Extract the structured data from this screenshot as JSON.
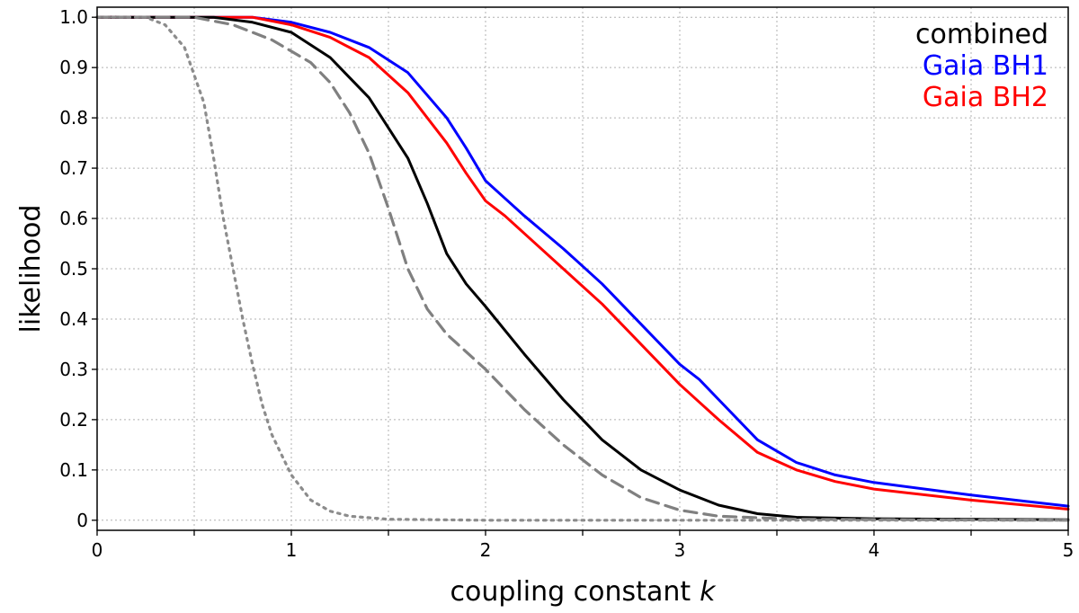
{
  "chart_data": {
    "type": "line",
    "xlabel": "coupling constant",
    "xlabel_symbol": "k",
    "ylabel": "likelihood",
    "xlim": [
      0,
      5
    ],
    "ylim": [
      -0.02,
      1.02
    ],
    "grid": true,
    "legend_position": "top-right",
    "x_ticks": [
      0,
      0.5,
      1,
      1.5,
      2,
      2.5,
      3,
      3.5,
      4,
      4.5,
      5
    ],
    "x_tick_labels": [
      "0",
      "",
      "1",
      "",
      "2",
      "",
      "3",
      "",
      "4",
      "",
      "5"
    ],
    "y_ticks": [
      0,
      0.1,
      0.2,
      0.3,
      0.4,
      0.5,
      0.6,
      0.7,
      0.8,
      0.9,
      1.0
    ],
    "y_tick_labels": [
      "0",
      "0.1",
      "0.2",
      "0.3",
      "0.4",
      "0.5",
      "0.6",
      "0.7",
      "0.8",
      "0.9",
      "1.0"
    ],
    "legend": [
      {
        "label": "combined",
        "color": "#000000"
      },
      {
        "label": "Gaia BH1",
        "color": "#0000ff"
      },
      {
        "label": "Gaia BH2",
        "color": "#ff0000"
      }
    ],
    "series": [
      {
        "name": "Gaia BH1",
        "color": "#0000ff",
        "style": "solid",
        "points": [
          [
            0,
            1.0
          ],
          [
            0.6,
            1.0
          ],
          [
            0.8,
            1.0
          ],
          [
            1.0,
            0.99
          ],
          [
            1.2,
            0.97
          ],
          [
            1.4,
            0.94
          ],
          [
            1.6,
            0.89
          ],
          [
            1.8,
            0.8
          ],
          [
            1.9,
            0.74
          ],
          [
            2.0,
            0.675
          ],
          [
            2.1,
            0.64
          ],
          [
            2.2,
            0.605
          ],
          [
            2.4,
            0.54
          ],
          [
            2.6,
            0.47
          ],
          [
            2.8,
            0.39
          ],
          [
            3.0,
            0.31
          ],
          [
            3.1,
            0.28
          ],
          [
            3.2,
            0.24
          ],
          [
            3.4,
            0.16
          ],
          [
            3.6,
            0.115
          ],
          [
            3.8,
            0.09
          ],
          [
            4.0,
            0.075
          ],
          [
            4.5,
            0.05
          ],
          [
            5.0,
            0.028
          ]
        ]
      },
      {
        "name": "Gaia BH2",
        "color": "#ff0000",
        "style": "solid",
        "points": [
          [
            0,
            1.0
          ],
          [
            0.6,
            1.0
          ],
          [
            0.8,
            1.0
          ],
          [
            1.0,
            0.985
          ],
          [
            1.2,
            0.96
          ],
          [
            1.4,
            0.92
          ],
          [
            1.6,
            0.85
          ],
          [
            1.8,
            0.75
          ],
          [
            1.9,
            0.69
          ],
          [
            2.0,
            0.635
          ],
          [
            2.1,
            0.605
          ],
          [
            2.2,
            0.57
          ],
          [
            2.4,
            0.5
          ],
          [
            2.6,
            0.43
          ],
          [
            2.8,
            0.35
          ],
          [
            3.0,
            0.27
          ],
          [
            3.1,
            0.235
          ],
          [
            3.2,
            0.2
          ],
          [
            3.4,
            0.135
          ],
          [
            3.6,
            0.1
          ],
          [
            3.8,
            0.077
          ],
          [
            4.0,
            0.062
          ],
          [
            4.5,
            0.04
          ],
          [
            5.0,
            0.022
          ]
        ]
      },
      {
        "name": "",
        "color": "#000000",
        "style": "solid",
        "points": [
          [
            0,
            1.0
          ],
          [
            0.6,
            1.0
          ],
          [
            0.8,
            0.99
          ],
          [
            1.0,
            0.97
          ],
          [
            1.2,
            0.92
          ],
          [
            1.4,
            0.84
          ],
          [
            1.6,
            0.72
          ],
          [
            1.7,
            0.63
          ],
          [
            1.8,
            0.53
          ],
          [
            1.9,
            0.47
          ],
          [
            2.0,
            0.425
          ],
          [
            2.2,
            0.33
          ],
          [
            2.4,
            0.24
          ],
          [
            2.6,
            0.16
          ],
          [
            2.8,
            0.1
          ],
          [
            3.0,
            0.06
          ],
          [
            3.2,
            0.03
          ],
          [
            3.4,
            0.013
          ],
          [
            3.6,
            0.006
          ],
          [
            4.0,
            0.003
          ],
          [
            5.0,
            0.001
          ]
        ]
      },
      {
        "name": "",
        "color": "#808080",
        "style": "dashed",
        "points": [
          [
            0,
            1.0
          ],
          [
            0.5,
            1.0
          ],
          [
            0.7,
            0.985
          ],
          [
            0.9,
            0.955
          ],
          [
            1.1,
            0.91
          ],
          [
            1.2,
            0.87
          ],
          [
            1.3,
            0.81
          ],
          [
            1.4,
            0.73
          ],
          [
            1.5,
            0.62
          ],
          [
            1.6,
            0.5
          ],
          [
            1.7,
            0.42
          ],
          [
            1.8,
            0.37
          ],
          [
            2.0,
            0.3
          ],
          [
            2.2,
            0.22
          ],
          [
            2.4,
            0.15
          ],
          [
            2.6,
            0.09
          ],
          [
            2.8,
            0.045
          ],
          [
            3.0,
            0.02
          ],
          [
            3.2,
            0.008
          ],
          [
            3.6,
            0.002
          ],
          [
            5.0,
            0.0
          ]
        ]
      },
      {
        "name": "",
        "color": "#8c8c8c",
        "style": "dotted",
        "points": [
          [
            0,
            1.0
          ],
          [
            0.25,
            1.0
          ],
          [
            0.35,
            0.985
          ],
          [
            0.45,
            0.94
          ],
          [
            0.55,
            0.83
          ],
          [
            0.6,
            0.72
          ],
          [
            0.65,
            0.6
          ],
          [
            0.7,
            0.5
          ],
          [
            0.75,
            0.4
          ],
          [
            0.8,
            0.31
          ],
          [
            0.85,
            0.23
          ],
          [
            0.9,
            0.17
          ],
          [
            1.0,
            0.09
          ],
          [
            1.1,
            0.04
          ],
          [
            1.2,
            0.018
          ],
          [
            1.3,
            0.008
          ],
          [
            1.5,
            0.002
          ],
          [
            2.0,
            0.0
          ],
          [
            5.0,
            0.0
          ]
        ]
      }
    ]
  }
}
